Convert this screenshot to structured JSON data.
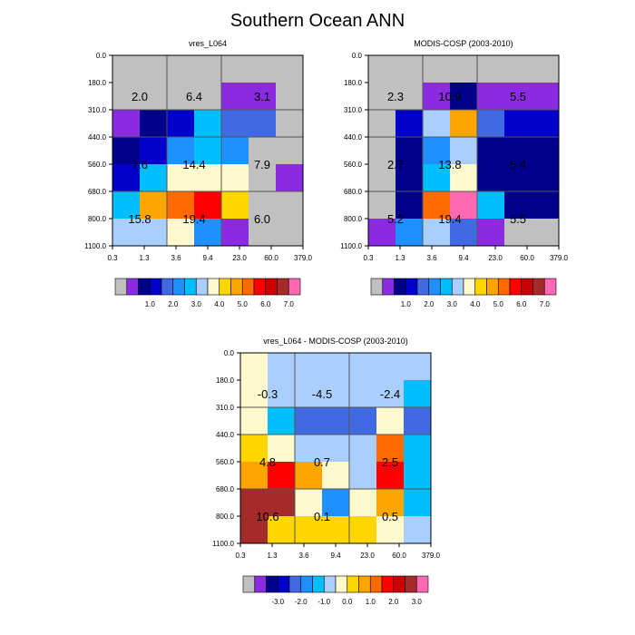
{
  "title": "Southern Ocean ANN",
  "chart_data": [
    {
      "type": "heatmap",
      "title": "vres_L064",
      "x_ticks": [
        "0.3",
        "1.3",
        "3.6",
        "9.4",
        "23.0",
        "60.0",
        "379.0"
      ],
      "y_ticks": [
        "0.0",
        "180.0",
        "310.0",
        "440.0",
        "560.0",
        "680.0",
        "800.0",
        "1100.0"
      ],
      "colors": [
        [
          "#c0c0c0",
          "#c0c0c0",
          "#c0c0c0",
          "#c0c0c0",
          "#c0c0c0",
          "#c0c0c0",
          "#c0c0c0"
        ],
        [
          "#c0c0c0",
          "#c0c0c0",
          "#c0c0c0",
          "#c0c0c0",
          "#8a2be2",
          "#8a2be2",
          "#c0c0c0"
        ],
        [
          "#8a2be2",
          "#00008b",
          "#0000cd",
          "#00bfff",
          "#4169e1",
          "#4169e1",
          "#c0c0c0"
        ],
        [
          "#00008b",
          "#0000cd",
          "#1e90ff",
          "#00bfff",
          "#1e90ff",
          "#c0c0c0",
          "#c0c0c0"
        ],
        [
          "#0000cd",
          "#00bfff",
          "#fffacd",
          "#fffacd",
          "#fffacd",
          "#c0c0c0",
          "#8a2be2"
        ],
        [
          "#00bfff",
          "#ffa500",
          "#ff6a00",
          "#ff0000",
          "#ffd700",
          "#c0c0c0",
          "#c0c0c0"
        ],
        [
          "#aacfff",
          "#aacfff",
          "#fffacd",
          "#1e90ff",
          "#8a2be2",
          "#c0c0c0",
          "#c0c0c0"
        ]
      ],
      "box_labels": [
        [
          "2.0",
          "6.4",
          "3.1"
        ],
        [
          "7.6",
          "14.4",
          "7.9"
        ],
        [
          "15.8",
          "19.4",
          "6.0"
        ]
      ]
    },
    {
      "type": "heatmap",
      "title": "MODIS-COSP (2003-2010)",
      "x_ticks": [
        "0.3",
        "1.3",
        "3.6",
        "9.4",
        "23.0",
        "60.0",
        "379.0"
      ],
      "y_ticks": [
        "0.0",
        "180.0",
        "310.0",
        "440.0",
        "560.0",
        "680.0",
        "800.0",
        "1100.0"
      ],
      "colors": [
        [
          "#c0c0c0",
          "#c0c0c0",
          "#c0c0c0",
          "#c0c0c0",
          "#c0c0c0",
          "#c0c0c0",
          "#c0c0c0"
        ],
        [
          "#c0c0c0",
          "#c0c0c0",
          "#8a2be2",
          "#00008b",
          "#8a2be2",
          "#8a2be2",
          "#8a2be2"
        ],
        [
          "#c0c0c0",
          "#0000cd",
          "#aacfff",
          "#ffa500",
          "#4169e1",
          "#0000cd",
          "#0000cd"
        ],
        [
          "#c0c0c0",
          "#00008b",
          "#1e90ff",
          "#aacfff",
          "#00008b",
          "#00008b",
          "#00008b"
        ],
        [
          "#c0c0c0",
          "#00008b",
          "#00bfff",
          "#fffacd",
          "#00008b",
          "#00008b",
          "#00008b"
        ],
        [
          "#c0c0c0",
          "#00008b",
          "#ff6a00",
          "#ff69b4",
          "#00bfff",
          "#00008b",
          "#00008b"
        ],
        [
          "#8a2be2",
          "#1e90ff",
          "#aacfff",
          "#4169e1",
          "#8a2be2",
          "#c0c0c0",
          "#c0c0c0"
        ]
      ],
      "box_labels": [
        [
          "2.3",
          "10.9",
          "5.5"
        ],
        [
          "2.7",
          "13.8",
          "5.4"
        ],
        [
          "5.2",
          "19.4",
          "5.5"
        ]
      ]
    },
    {
      "type": "heatmap",
      "title": "vres_L064 - MODIS-COSP (2003-2010)",
      "x_ticks": [
        "0.3",
        "1.3",
        "3.6",
        "9.4",
        "23.0",
        "60.0",
        "379.0"
      ],
      "y_ticks": [
        "0.0",
        "180.0",
        "310.0",
        "440.0",
        "560.0",
        "680.0",
        "800.0",
        "1100.0"
      ],
      "colors": [
        [
          "#fffacd",
          "#aacfff",
          "#aacfff",
          "#aacfff",
          "#aacfff",
          "#aacfff",
          "#aacfff"
        ],
        [
          "#fffacd",
          "#aacfff",
          "#aacfff",
          "#aacfff",
          "#aacfff",
          "#aacfff",
          "#00bfff"
        ],
        [
          "#fffacd",
          "#00bfff",
          "#4169e1",
          "#4169e1",
          "#4169e1",
          "#fffacd",
          "#4169e1"
        ],
        [
          "#ffd700",
          "#fffacd",
          "#aacfff",
          "#aacfff",
          "#aacfff",
          "#ff6a00",
          "#00bfff"
        ],
        [
          "#ffa500",
          "#ff0000",
          "#ffa500",
          "#fffacd",
          "#aacfff",
          "#ff0000",
          "#00bfff"
        ],
        [
          "#a52a2a",
          "#a52a2a",
          "#fffacd",
          "#1e90ff",
          "#fffacd",
          "#ffa500",
          "#00bfff"
        ],
        [
          "#a52a2a",
          "#ffd700",
          "#ffd700",
          "#ffd700",
          "#ffd700",
          "#fffacd",
          "#aacfff"
        ]
      ],
      "box_labels": [
        [
          "-0.3",
          "-4.5",
          "-2.4"
        ],
        [
          "4.8",
          "0.7",
          "2.5"
        ],
        [
          "10.6",
          "0.1",
          "0.5"
        ]
      ]
    }
  ],
  "colorbars": [
    {
      "colors": [
        "#c0c0c0",
        "#8a2be2",
        "#00008b",
        "#0000cd",
        "#4169e1",
        "#1e90ff",
        "#00bfff",
        "#aacfff",
        "#fffacd",
        "#ffd700",
        "#ffa500",
        "#ff6a00",
        "#ff0000",
        "#cc0000",
        "#a52a2a",
        "#ff69b4"
      ],
      "labels": [
        "1.0",
        "2.0",
        "3.0",
        "4.0",
        "5.0",
        "6.0",
        "7.0"
      ]
    },
    {
      "colors": [
        "#c0c0c0",
        "#8a2be2",
        "#00008b",
        "#0000cd",
        "#4169e1",
        "#1e90ff",
        "#00bfff",
        "#aacfff",
        "#fffacd",
        "#ffd700",
        "#ffa500",
        "#ff6a00",
        "#ff0000",
        "#cc0000",
        "#a52a2a",
        "#ff69b4"
      ],
      "labels": [
        "1.0",
        "2.0",
        "3.0",
        "4.0",
        "5.0",
        "6.0",
        "7.0"
      ]
    },
    {
      "colors": [
        "#c0c0c0",
        "#8a2be2",
        "#00008b",
        "#0000cd",
        "#4169e1",
        "#1e90ff",
        "#00bfff",
        "#aacfff",
        "#fffacd",
        "#ffd700",
        "#ffa500",
        "#ff6a00",
        "#ff0000",
        "#cc0000",
        "#a52a2a",
        "#ff69b4"
      ],
      "labels": [
        "-3.0",
        "-2.0",
        "-1.0",
        "0.0",
        "1.0",
        "2.0",
        "3.0"
      ]
    }
  ]
}
